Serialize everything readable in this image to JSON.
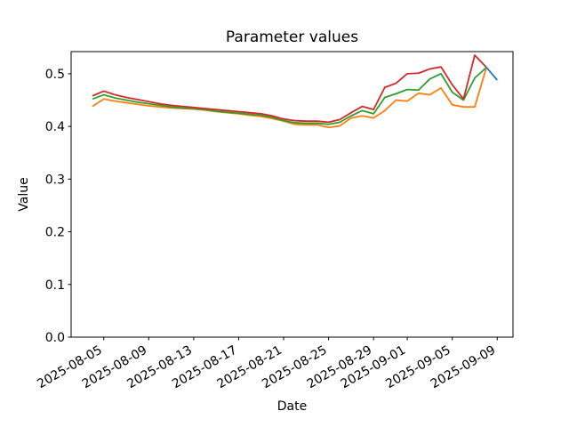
{
  "figure": {
    "title": "Parameter values",
    "xlabel": "Date",
    "ylabel": "Value"
  },
  "chart_data": {
    "type": "line",
    "title": "Parameter values",
    "xlabel": "Date",
    "ylabel": "Value",
    "ylim": [
      0.0,
      0.542
    ],
    "grid": false,
    "legend": null,
    "x_tick_labels": [
      "2025-08-05",
      "2025-08-09",
      "2025-08-13",
      "2025-08-17",
      "2025-08-21",
      "2025-08-25",
      "2025-08-29",
      "2025-09-01",
      "2025-09-05",
      "2025-09-09"
    ],
    "y_ticks": [
      0.0,
      0.1,
      0.2,
      0.3,
      0.4,
      0.5
    ],
    "y_tick_labels": [
      "0.0",
      "0.1",
      "0.2",
      "0.3",
      "0.4",
      "0.5"
    ],
    "dates": [
      "2025-08-04",
      "2025-08-05",
      "2025-08-06",
      "2025-08-07",
      "2025-08-08",
      "2025-08-09",
      "2025-08-10",
      "2025-08-11",
      "2025-08-12",
      "2025-08-13",
      "2025-08-14",
      "2025-08-15",
      "2025-08-16",
      "2025-08-17",
      "2025-08-18",
      "2025-08-19",
      "2025-08-20",
      "2025-08-21",
      "2025-08-22",
      "2025-08-23",
      "2025-08-24",
      "2025-08-25",
      "2025-08-26",
      "2025-08-27",
      "2025-08-28",
      "2025-08-29",
      "2025-08-30",
      "2025-08-31",
      "2025-09-01",
      "2025-09-02",
      "2025-09-03",
      "2025-09-04",
      "2025-09-05",
      "2025-09-06",
      "2025-09-07",
      "2025-09-08"
    ],
    "series": [
      {
        "name": "blue",
        "color": "#1f77b4",
        "dates": [
          "2025-09-08",
          "2025-09-09"
        ],
        "values": [
          0.513,
          0.488
        ]
      },
      {
        "name": "orange",
        "color": "#ff7f0e",
        "dates": null,
        "values": [
          0.438,
          0.452,
          0.448,
          0.445,
          0.442,
          0.439,
          0.437,
          0.435,
          0.434,
          0.433,
          0.431,
          0.428,
          0.426,
          0.424,
          0.421,
          0.419,
          0.415,
          0.41,
          0.404,
          0.403,
          0.403,
          0.398,
          0.401,
          0.416,
          0.42,
          0.416,
          0.43,
          0.45,
          0.448,
          0.463,
          0.46,
          0.473,
          0.441,
          0.437,
          0.437,
          0.509
        ]
      },
      {
        "name": "green",
        "color": "#2ca02c",
        "dates": null,
        "values": [
          0.452,
          0.46,
          0.454,
          0.45,
          0.446,
          0.443,
          0.44,
          0.437,
          0.435,
          0.434,
          0.432,
          0.429,
          0.427,
          0.425,
          0.423,
          0.421,
          0.417,
          0.411,
          0.407,
          0.406,
          0.406,
          0.404,
          0.408,
          0.42,
          0.43,
          0.424,
          0.455,
          0.462,
          0.47,
          0.469,
          0.49,
          0.5,
          0.465,
          0.45,
          0.492,
          0.511
        ]
      },
      {
        "name": "red",
        "color": "#d62728",
        "dates": null,
        "values": [
          0.458,
          0.467,
          0.46,
          0.455,
          0.451,
          0.447,
          0.443,
          0.44,
          0.438,
          0.436,
          0.434,
          0.432,
          0.43,
          0.428,
          0.426,
          0.424,
          0.42,
          0.414,
          0.411,
          0.41,
          0.41,
          0.408,
          0.413,
          0.426,
          0.438,
          0.432,
          0.474,
          0.482,
          0.5,
          0.501,
          0.509,
          0.513,
          0.479,
          0.452,
          0.535,
          0.513
        ]
      }
    ]
  }
}
